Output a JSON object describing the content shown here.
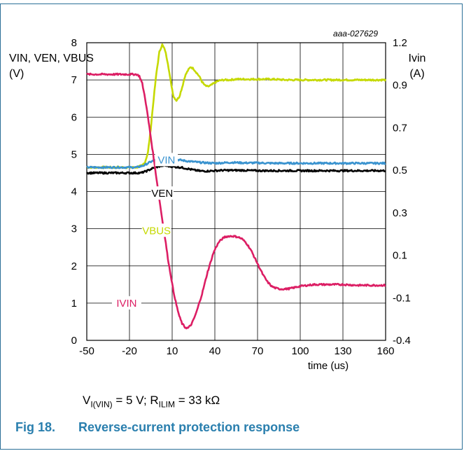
{
  "chart_data": {
    "type": "line",
    "code": "aaa-027629",
    "xlabel": "time (us)",
    "x_ticks": [
      "-50",
      "-20",
      "10",
      "40",
      "70",
      "100",
      "130",
      "160"
    ],
    "xlim": [
      -50,
      160
    ],
    "ylabel_left": [
      "VIN, VEN, VBUS",
      "(V)"
    ],
    "y_ticks_left": [
      "0",
      "1",
      "2",
      "3",
      "4",
      "5",
      "6",
      "7",
      "8"
    ],
    "ylim_left": [
      0,
      8
    ],
    "ylabel_right": [
      "Ivin",
      "(A)"
    ],
    "y_ticks_right": [
      "-0.4",
      "-0.1",
      "0.1",
      "0.3",
      "0.5",
      "0.7",
      "0.9",
      "1.2"
    ],
    "grid": true,
    "series": [
      {
        "name": "VBUS",
        "color": "#c5d900",
        "axis": "left",
        "x": [
          -50,
          -15,
          -11,
          -9,
          -7,
          -5,
          -3,
          -1,
          1,
          3,
          5,
          7,
          9,
          11,
          13,
          15,
          17,
          19,
          21,
          23,
          25,
          27,
          29,
          31,
          33,
          35,
          37,
          39,
          41,
          43,
          46,
          50,
          55,
          60,
          70,
          80,
          90,
          100,
          110,
          120,
          130,
          140,
          150,
          160
        ],
        "values": [
          4.65,
          4.65,
          4.7,
          4.8,
          5.05,
          5.7,
          6.5,
          7.2,
          7.75,
          7.95,
          7.8,
          7.45,
          6.95,
          6.55,
          6.45,
          6.55,
          6.8,
          7.1,
          7.25,
          7.35,
          7.3,
          7.2,
          7.1,
          6.95,
          6.85,
          6.82,
          6.85,
          6.9,
          6.95,
          6.98,
          7.0,
          7.0,
          7.02,
          7.02,
          7.02,
          7.02,
          7.0,
          7.0,
          7.0,
          7.0,
          7.0,
          7.0,
          7.0,
          7.0
        ]
      },
      {
        "name": "VIN",
        "color": "#3a93cf",
        "axis": "left",
        "x": [
          -50,
          -15,
          -10,
          -5,
          0,
          5,
          10,
          15,
          20,
          25,
          30,
          35,
          40,
          45,
          50,
          55,
          60,
          70,
          80,
          90,
          100,
          110,
          120,
          130,
          140,
          150,
          160
        ],
        "values": [
          4.65,
          4.65,
          4.7,
          4.8,
          4.88,
          4.9,
          4.88,
          4.85,
          4.82,
          4.8,
          4.78,
          4.77,
          4.76,
          4.77,
          4.78,
          4.78,
          4.77,
          4.77,
          4.76,
          4.76,
          4.76,
          4.76,
          4.76,
          4.76,
          4.76,
          4.76,
          4.76
        ]
      },
      {
        "name": "VEN",
        "color": "#000000",
        "axis": "left",
        "x": [
          -50,
          -20,
          -12,
          -8,
          -4,
          0,
          4,
          8,
          12,
          16,
          20,
          25,
          30,
          35,
          40,
          45,
          50,
          60,
          70,
          80,
          90,
          100,
          110,
          120,
          130,
          140,
          150,
          160
        ],
        "values": [
          4.5,
          4.5,
          4.5,
          4.55,
          4.62,
          4.67,
          4.7,
          4.68,
          4.66,
          4.65,
          4.62,
          4.58,
          4.55,
          4.55,
          4.56,
          4.57,
          4.57,
          4.57,
          4.56,
          4.56,
          4.56,
          4.56,
          4.56,
          4.56,
          4.56,
          4.56,
          4.56,
          4.56
        ]
      },
      {
        "name": "IVIN",
        "color": "#dc1e64",
        "axis": "left",
        "x": [
          -50,
          -15,
          -13,
          -11,
          -9,
          -7,
          -5,
          -3,
          -1,
          1,
          3,
          5,
          7,
          9,
          11,
          13,
          15,
          17,
          19,
          21,
          23,
          25,
          27,
          29,
          31,
          33,
          35,
          37,
          39,
          41,
          43,
          45,
          47,
          50,
          53,
          56,
          59,
          62,
          65,
          68,
          71,
          74,
          77,
          80,
          83,
          86,
          89,
          92,
          95,
          98,
          101,
          105,
          110,
          115,
          120,
          130,
          140,
          150,
          160
        ],
        "values": [
          7.15,
          7.15,
          7.1,
          6.9,
          6.5,
          6.0,
          5.45,
          4.9,
          4.35,
          3.8,
          3.25,
          2.75,
          2.2,
          1.75,
          1.3,
          0.95,
          0.65,
          0.45,
          0.35,
          0.33,
          0.4,
          0.55,
          0.75,
          1.0,
          1.25,
          1.55,
          1.85,
          2.1,
          2.35,
          2.52,
          2.65,
          2.72,
          2.78,
          2.8,
          2.8,
          2.78,
          2.73,
          2.62,
          2.45,
          2.22,
          1.98,
          1.75,
          1.57,
          1.45,
          1.4,
          1.38,
          1.38,
          1.39,
          1.41,
          1.44,
          1.46,
          1.48,
          1.5,
          1.5,
          1.5,
          1.5,
          1.48,
          1.48,
          1.48
        ]
      }
    ],
    "annotations": [
      {
        "text": "VIN",
        "color": "#3a93cf",
        "x": 6,
        "y": 4.85
      },
      {
        "text": "VEN",
        "color": "#000000",
        "x": 3,
        "y": 3.95
      },
      {
        "text": "VBUS",
        "color": "#c5d900",
        "x": -1,
        "y": 2.95
      },
      {
        "text": "IVIN",
        "color": "#dc1e64",
        "x": -22,
        "y": 1.0
      }
    ]
  },
  "caption": {
    "v_main": "V",
    "v_sub": "I(VIN)",
    "v_rest": " = 5 V; R",
    "r_sub": "ILIM",
    "r_rest": " = 33 kΩ"
  },
  "figure": {
    "number": "Fig 18.",
    "title": "Reverse-current protection response"
  }
}
